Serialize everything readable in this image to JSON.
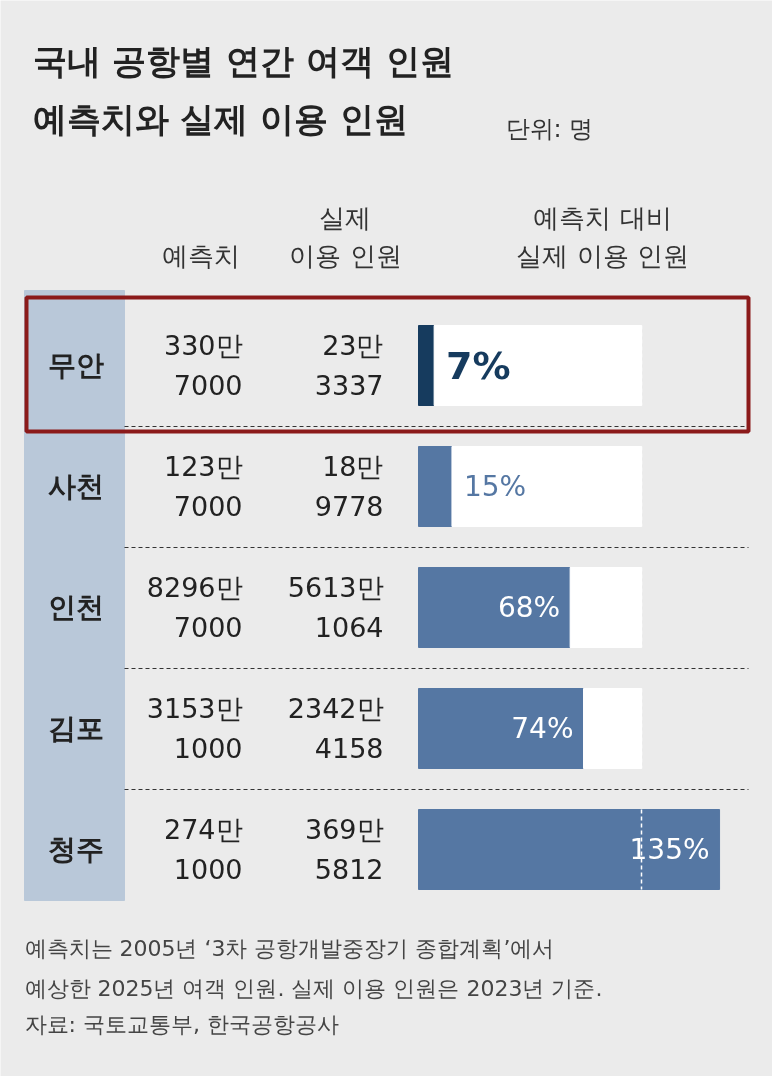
{
  "chart_data": {
    "type": "bar",
    "orientation": "horizontal",
    "title": "국내 공항별 연간 여객 인원\n예측치와 실제 이용 인원",
    "subtitle": "단위: 명",
    "xlabel": "예측치 대비\n실제 이용 인원",
    "categories": [
      "무안",
      "사천",
      "인천",
      "김포",
      "청주"
    ],
    "stacked": true,
    "series": [
      {
        "colors": [
          "#163b5e",
          "#5577a3",
          "#5577a3",
          "#5577a3",
          "#5577a3"
        ],
        "values": [
          7,
          15,
          68,
          74,
          135
        ],
        "value_labels": [
          "7%",
          "15%",
          "68%",
          "74%",
          "135%"
        ]
      },
      {
        "color": "#ffffff",
        "values": [
          93,
          85,
          32,
          26,
          null
        ]
      }
    ],
    "ref_lines": [
      {
        "axis": "x",
        "value": 100,
        "color": "#ffffff",
        "line_style": "dashed"
      }
    ],
    "annotations": [
      "예측치",
      "실제\n이용 인원",
      "330만\n7000",
      "23만\n3337",
      "123만\n7000",
      "18만\n9778",
      "8296만\n7000",
      "5613만\n1064",
      "3153만\n1000",
      "2342만\n4158",
      "274만\n1000",
      "369만\n5812",
      "예측치는 2005년 ‘3차 공항개발중장기 종합계획’에서\n예상한 2025년 여객 인원. 실제 이용 인원은 2023년 기준.",
      "자료: 국토교통부, 한국공항공사"
    ]
  }
}
